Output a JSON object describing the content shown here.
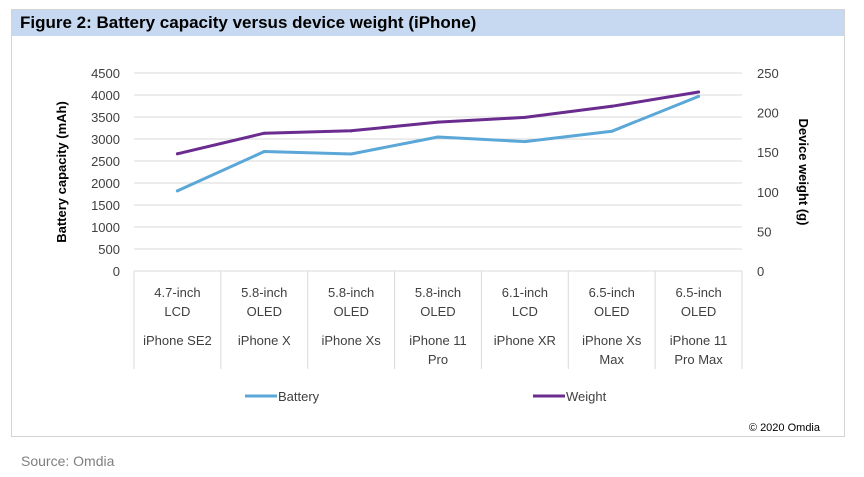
{
  "figure": {
    "title": "Figure 2: Battery capacity versus device weight (iPhone)",
    "source": "Source: Omdia",
    "copyright": "© 2020 Omdia"
  },
  "chart_data": {
    "type": "line",
    "title": "Figure 2: Battery capacity versus device weight (iPhone)",
    "categories": [
      {
        "display": "4.7-inch LCD",
        "lines": [
          "4.7-inch",
          "LCD"
        ],
        "model_lines": [
          "iPhone SE2"
        ]
      },
      {
        "display": "5.8-inch OLED",
        "lines": [
          "5.8-inch",
          "OLED"
        ],
        "model_lines": [
          "iPhone X"
        ]
      },
      {
        "display": "5.8-inch OLED",
        "lines": [
          "5.8-inch",
          "OLED"
        ],
        "model_lines": [
          "iPhone Xs"
        ]
      },
      {
        "display": "5.8-inch OLED",
        "lines": [
          "5.8-inch",
          "OLED"
        ],
        "model_lines": [
          "iPhone 11",
          "Pro"
        ]
      },
      {
        "display": "6.1-inch LCD",
        "lines": [
          "6.1-inch",
          "LCD"
        ],
        "model_lines": [
          "iPhone XR"
        ]
      },
      {
        "display": "6.5-inch OLED",
        "lines": [
          "6.5-inch",
          "OLED"
        ],
        "model_lines": [
          "iPhone Xs",
          "Max"
        ]
      },
      {
        "display": "6.5-inch OLED",
        "lines": [
          "6.5-inch",
          "OLED"
        ],
        "model_lines": [
          "iPhone 11",
          "Pro Max"
        ]
      }
    ],
    "series": [
      {
        "name": "Battery",
        "axis": "left",
        "color": "#5aa7d8",
        "values": [
          1821,
          2716,
          2658,
          3046,
          2942,
          3174,
          3969
        ]
      },
      {
        "name": "Weight",
        "axis": "right",
        "color": "#6a2c8e",
        "values": [
          148,
          174,
          177,
          188,
          194,
          208,
          226
        ]
      }
    ],
    "ylabel": "Battery capacity (mAh)",
    "ylim": [
      0,
      4500
    ],
    "yticks": [
      0,
      500,
      1000,
      1500,
      2000,
      2500,
      3000,
      3500,
      4000,
      4500
    ],
    "y2label": "Device weight (g)",
    "y2lim": [
      0,
      250
    ],
    "y2ticks": [
      0,
      50,
      100,
      150,
      200,
      250
    ],
    "grid": true,
    "legend": "bottom"
  }
}
